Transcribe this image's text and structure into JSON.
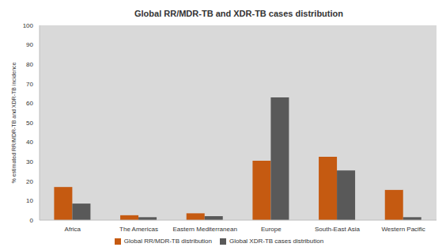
{
  "chart_data": {
    "type": "bar",
    "title": "Global RR/MDR-TB and XDR-TB cases distribution",
    "y_label": "% estimated RR/MDR-TB and XDR-TB incidence",
    "categories": [
      "Africa",
      "The Americas",
      "Eastern Mediterranean",
      "Europe",
      "South-East Asia",
      "Western Pacific"
    ],
    "series": [
      {
        "name": "Global RR/MDR-TB distribution",
        "color": "#c55a11",
        "values": [
          17,
          2.5,
          3.5,
          30.5,
          32.5,
          15.5
        ]
      },
      {
        "name": "Global XDR-TB cases distribution",
        "color": "#595959",
        "values": [
          8.5,
          1.5,
          2,
          63,
          25.5,
          1.5
        ]
      }
    ],
    "ylim": [
      0,
      100
    ],
    "yticks": [
      0,
      10,
      20,
      30,
      40,
      50,
      60,
      70,
      80,
      90,
      100
    ],
    "grid": false,
    "legend": "bottom"
  }
}
